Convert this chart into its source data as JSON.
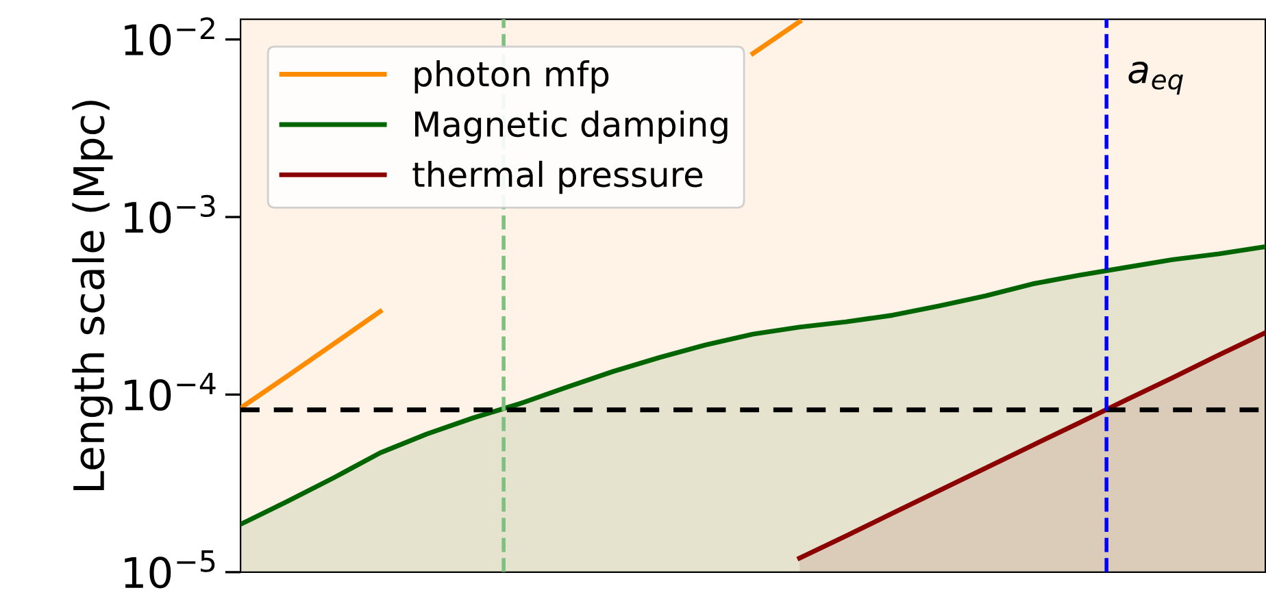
{
  "chart_data": {
    "type": "line",
    "ylabel": "Length scale (Mpc)",
    "categories": [
      null,
      null,
      null,
      null,
      null,
      null,
      null,
      null,
      null,
      null,
      null,
      null,
      null,
      null,
      null,
      null,
      null,
      null,
      null,
      null,
      null,
      null,
      null
    ],
    "series": [
      {
        "name": "photon mfp",
        "color": "#ff8c00",
        "values": [
          8.4e-05,
          0.000127,
          0.000193,
          0.000294,
          null,
          null,
          null,
          null,
          null,
          null,
          null,
          0.00834,
          0.0126,
          null,
          null,
          null,
          null,
          null,
          null,
          null,
          null,
          null,
          null
        ]
      },
      {
        "name": "Magnetic damping",
        "color": "#006400",
        "type": "area",
        "values": [
          1.86e-05,
          2.5e-05,
          3.4e-05,
          4.7e-05,
          6e-05,
          7.4e-05,
          8.9e-05,
          0.00011,
          0.000135,
          0.000162,
          0.000191,
          0.000219,
          0.00024,
          0.000257,
          0.00028,
          0.000316,
          0.00036,
          0.00042,
          0.00047,
          0.00052,
          0.000575,
          0.00062,
          0.00068
        ]
      },
      {
        "name": "thermal pressure",
        "color": "#8b0000",
        "type": "area",
        "values": [
          null,
          null,
          null,
          null,
          null,
          null,
          null,
          null,
          null,
          null,
          null,
          null,
          1.2e-05,
          1.6e-05,
          2.15e-05,
          2.88e-05,
          3.86e-05,
          5.18e-05,
          6.93e-05,
          9.3e-05,
          0.000124,
          0.000167,
          0.000223
        ]
      }
    ],
    "log": "y",
    "ylim": [
      1e-05,
      0.013
    ],
    "yticks": [
      {
        "value": 1e-05,
        "label": "10$^{−5}$"
      },
      {
        "value": 0.0001,
        "label": "10$^{−4}$"
      },
      {
        "value": 0.001,
        "label": "10$^{−3}$"
      },
      {
        "value": 0.01,
        "label": "10$^{−2}$"
      }
    ],
    "bands": [
      {
        "axis": "y",
        "from": 1e-05,
        "to": 0.013,
        "color": "#fff2e6"
      }
    ],
    "ref_lines": [
      {
        "axis": "y",
        "value": 8.2e-05,
        "color": "#000000",
        "line_style": "dashed"
      }
    ],
    "annotations": [
      "a$_{eq}$"
    ],
    "legend": "top left",
    "tick_labels": "y",
    "grid": false
  }
}
